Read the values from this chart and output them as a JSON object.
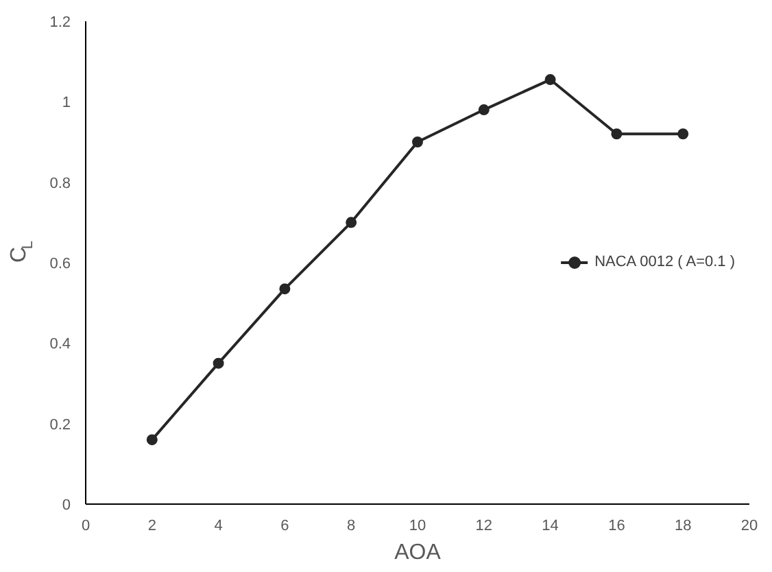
{
  "chart_data": {
    "type": "line",
    "xlabel": "AOA",
    "ylabel": "C$_{L}$",
    "x": [
      2,
      4,
      6,
      8,
      10,
      12,
      14,
      16,
      18
    ],
    "series": [
      {
        "name": "NACA 0012 ( A=0.1 )",
        "color": "#262626",
        "values": [
          0.16,
          0.35,
          0.535,
          0.7,
          0.9,
          0.98,
          1.055,
          0.92,
          0.92
        ]
      }
    ],
    "xlim": [
      0,
      20
    ],
    "xticks": [
      0,
      2,
      4,
      6,
      8,
      10,
      12,
      14,
      16,
      18,
      20
    ],
    "ylim": [
      0,
      1.2
    ],
    "yticks": [
      0,
      0.2,
      0.4,
      0.6,
      0.8,
      1,
      1.2
    ],
    "grid": false,
    "legend": "right",
    "marker": "circle",
    "line_style": "solid"
  }
}
